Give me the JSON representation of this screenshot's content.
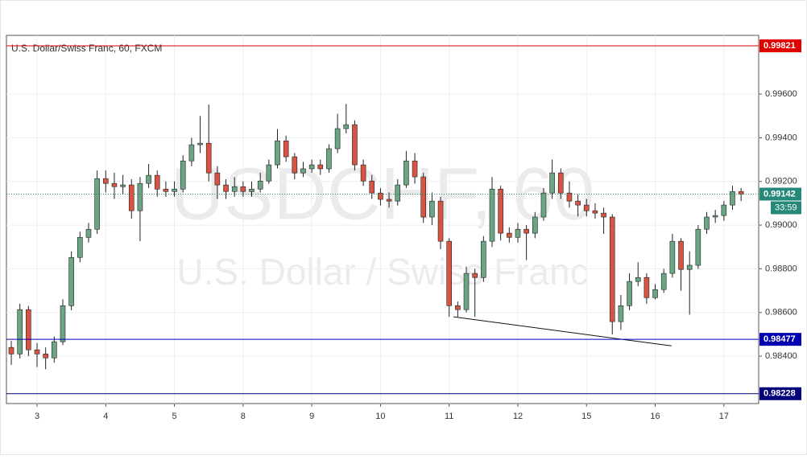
{
  "chart_data": {
    "type": "candlestick",
    "title": "U.S. Dollar/Swiss Franc, 60, FXCM",
    "watermark": "USDCHF, 60",
    "watermark_subtitle": "U.S. Dollar / Swiss Franc",
    "up_color": "#6ba583",
    "down_color": "#d75442",
    "open": [
      0.9844,
      0.9841,
      0.98613,
      0.98429,
      0.9841,
      0.98392,
      0.98466,
      0.98631,
      0.98852,
      0.98944,
      0.98981,
      0.99213,
      0.99191,
      0.99176,
      0.99184,
      0.99066,
      0.99191,
      0.99228,
      0.99165,
      0.99154,
      0.99165,
      0.99294,
      0.99368,
      0.99375,
      0.99239,
      0.99184,
      0.99154,
      0.99176,
      0.99154,
      0.99165,
      0.99202,
      0.99276,
      0.99386,
      0.99313,
      0.99239,
      0.99258,
      0.99276,
      0.99258,
      0.9935,
      0.99442,
      0.9946,
      0.99276,
      0.99202,
      0.99147,
      0.99118,
      0.9911,
      0.99184,
      0.99294,
      0.99221,
      0.99037,
      0.9911,
      0.98926,
      0.98631,
      0.98613,
      0.98779,
      0.9876,
      0.98926,
      0.99165,
      0.98963,
      0.98944,
      0.98981,
      0.98963,
      0.99037,
      0.99147,
      0.99239,
      0.99147,
      0.9911,
      0.99092,
      0.99066,
      0.99055,
      0.99037,
      0.98558,
      0.98631,
      0.98742,
      0.9876,
      0.98668,
      0.98705,
      0.98779,
      0.98926,
      0.98797,
      0.98816,
      0.98981,
      0.99037,
      0.99044,
      0.99092,
      0.99154
    ],
    "high": [
      0.9847,
      0.9864,
      0.9863,
      0.9846,
      0.9844,
      0.9849,
      0.9866,
      0.9888,
      0.9897,
      0.9901,
      0.9925,
      0.9925,
      0.9924,
      0.9923,
      0.9921,
      0.9922,
      0.9928,
      0.9925,
      0.992,
      0.992,
      0.9932,
      0.994,
      0.995,
      0.99552,
      0.9927,
      0.9921,
      0.9922,
      0.992,
      0.992,
      0.9924,
      0.993,
      0.9944,
      0.9941,
      0.9933,
      0.9929,
      0.993,
      0.993,
      0.9937,
      0.9951,
      0.99555,
      0.9948,
      0.993,
      0.9923,
      0.9917,
      0.9915,
      0.9921,
      0.9934,
      0.9933,
      0.9924,
      0.9915,
      0.9913,
      0.9894,
      0.9865,
      0.9881,
      0.988,
      0.9895,
      0.9922,
      0.9918,
      0.9899,
      0.9901,
      0.99,
      0.9906,
      0.9917,
      0.993,
      0.9926,
      0.992,
      0.9914,
      0.9912,
      0.991,
      0.9908,
      0.9905,
      0.9868,
      0.9878,
      0.9883,
      0.9878,
      0.9873,
      0.988,
      0.9896,
      0.9894,
      0.9888,
      0.99,
      0.9906,
      0.9907,
      0.9911,
      0.9918,
      0.9917
    ],
    "low": [
      0.9836,
      0.9839,
      0.984,
      0.9835,
      0.9834,
      0.9837,
      0.9845,
      0.9861,
      0.9883,
      0.9892,
      0.9896,
      0.9915,
      0.9912,
      0.9914,
      0.9903,
      0.98926,
      0.9917,
      0.9913,
      0.9913,
      0.9913,
      0.9915,
      0.9927,
      0.9933,
      0.992,
      0.9912,
      0.9912,
      0.9913,
      0.9913,
      0.9913,
      0.9915,
      0.9919,
      0.9926,
      0.9929,
      0.9921,
      0.9922,
      0.9924,
      0.9923,
      0.9924,
      0.9933,
      0.9942,
      0.9925,
      0.9918,
      0.9912,
      0.9909,
      0.9908,
      0.9909,
      0.9917,
      0.9919,
      0.9901,
      0.99,
      0.9889,
      0.9858,
      0.9858,
      0.986,
      0.9858,
      0.9874,
      0.989,
      0.9893,
      0.9892,
      0.9892,
      0.9884,
      0.9894,
      0.9902,
      0.9912,
      0.9912,
      0.9908,
      0.9904,
      0.9904,
      0.9903,
      0.9896,
      0.985,
      0.9852,
      0.9861,
      0.9872,
      0.9864,
      0.9866,
      0.9869,
      0.9876,
      0.987,
      0.9859,
      0.988,
      0.9896,
      0.9901,
      0.9902,
      0.9907,
      0.9911
    ],
    "close": [
      0.9841,
      0.98613,
      0.98429,
      0.9841,
      0.98392,
      0.98466,
      0.98631,
      0.98852,
      0.98944,
      0.98981,
      0.99213,
      0.99191,
      0.99176,
      0.99184,
      0.99066,
      0.99191,
      0.99228,
      0.99165,
      0.99154,
      0.99165,
      0.99294,
      0.99368,
      0.99375,
      0.99239,
      0.99184,
      0.99154,
      0.99176,
      0.99154,
      0.99165,
      0.99202,
      0.99276,
      0.99386,
      0.99313,
      0.99239,
      0.99258,
      0.99276,
      0.99258,
      0.9935,
      0.99442,
      0.9946,
      0.99276,
      0.99202,
      0.99147,
      0.99118,
      0.9911,
      0.99184,
      0.99294,
      0.99221,
      0.99037,
      0.9911,
      0.98926,
      0.98631,
      0.98613,
      0.98779,
      0.9876,
      0.98926,
      0.99165,
      0.98963,
      0.98944,
      0.98981,
      0.98963,
      0.99037,
      0.99147,
      0.99239,
      0.99147,
      0.9911,
      0.99092,
      0.99066,
      0.99055,
      0.99037,
      0.98558,
      0.98631,
      0.98742,
      0.9876,
      0.98668,
      0.98705,
      0.98779,
      0.98926,
      0.98797,
      0.98816,
      0.98981,
      0.99037,
      0.99044,
      0.99092,
      0.99154,
      0.99142
    ],
    "xlim": [
      -0.565,
      87.05
    ],
    "xticks": [
      {
        "value": 3,
        "label": "3"
      },
      {
        "value": 11,
        "label": "4"
      },
      {
        "value": 19,
        "label": "5"
      },
      {
        "value": 27,
        "label": "8"
      },
      {
        "value": 35,
        "label": "9"
      },
      {
        "value": 43,
        "label": "10"
      },
      {
        "value": 51,
        "label": "11"
      },
      {
        "value": 59,
        "label": "12"
      },
      {
        "value": 67,
        "label": "15"
      },
      {
        "value": 75,
        "label": "16"
      },
      {
        "value": 83,
        "label": "17"
      }
    ],
    "ylim": [
      0.98183,
      0.99869
    ],
    "yticks": [
      {
        "value": 0.984,
        "label": "0.98400"
      },
      {
        "value": 0.986,
        "label": "0.98600"
      },
      {
        "value": 0.988,
        "label": "0.98800"
      },
      {
        "value": 0.99,
        "label": "0.99000"
      },
      {
        "value": 0.992,
        "label": "0.99200"
      },
      {
        "value": 0.994,
        "label": "0.99400"
      },
      {
        "value": 0.996,
        "label": "0.99600"
      }
    ],
    "levels": [
      {
        "value": 0.99821,
        "color": "#e00000"
      },
      {
        "value": 0.98477,
        "color": "#0000b0"
      },
      {
        "value": 0.98228,
        "color": "#00007a"
      }
    ],
    "last_price": {
      "value": 0.99142,
      "color": "#26887a",
      "countdown": "33:59"
    },
    "trendline": {
      "x": [
        51.5,
        76.9
      ],
      "y": [
        0.9858,
        0.98447
      ]
    }
  }
}
